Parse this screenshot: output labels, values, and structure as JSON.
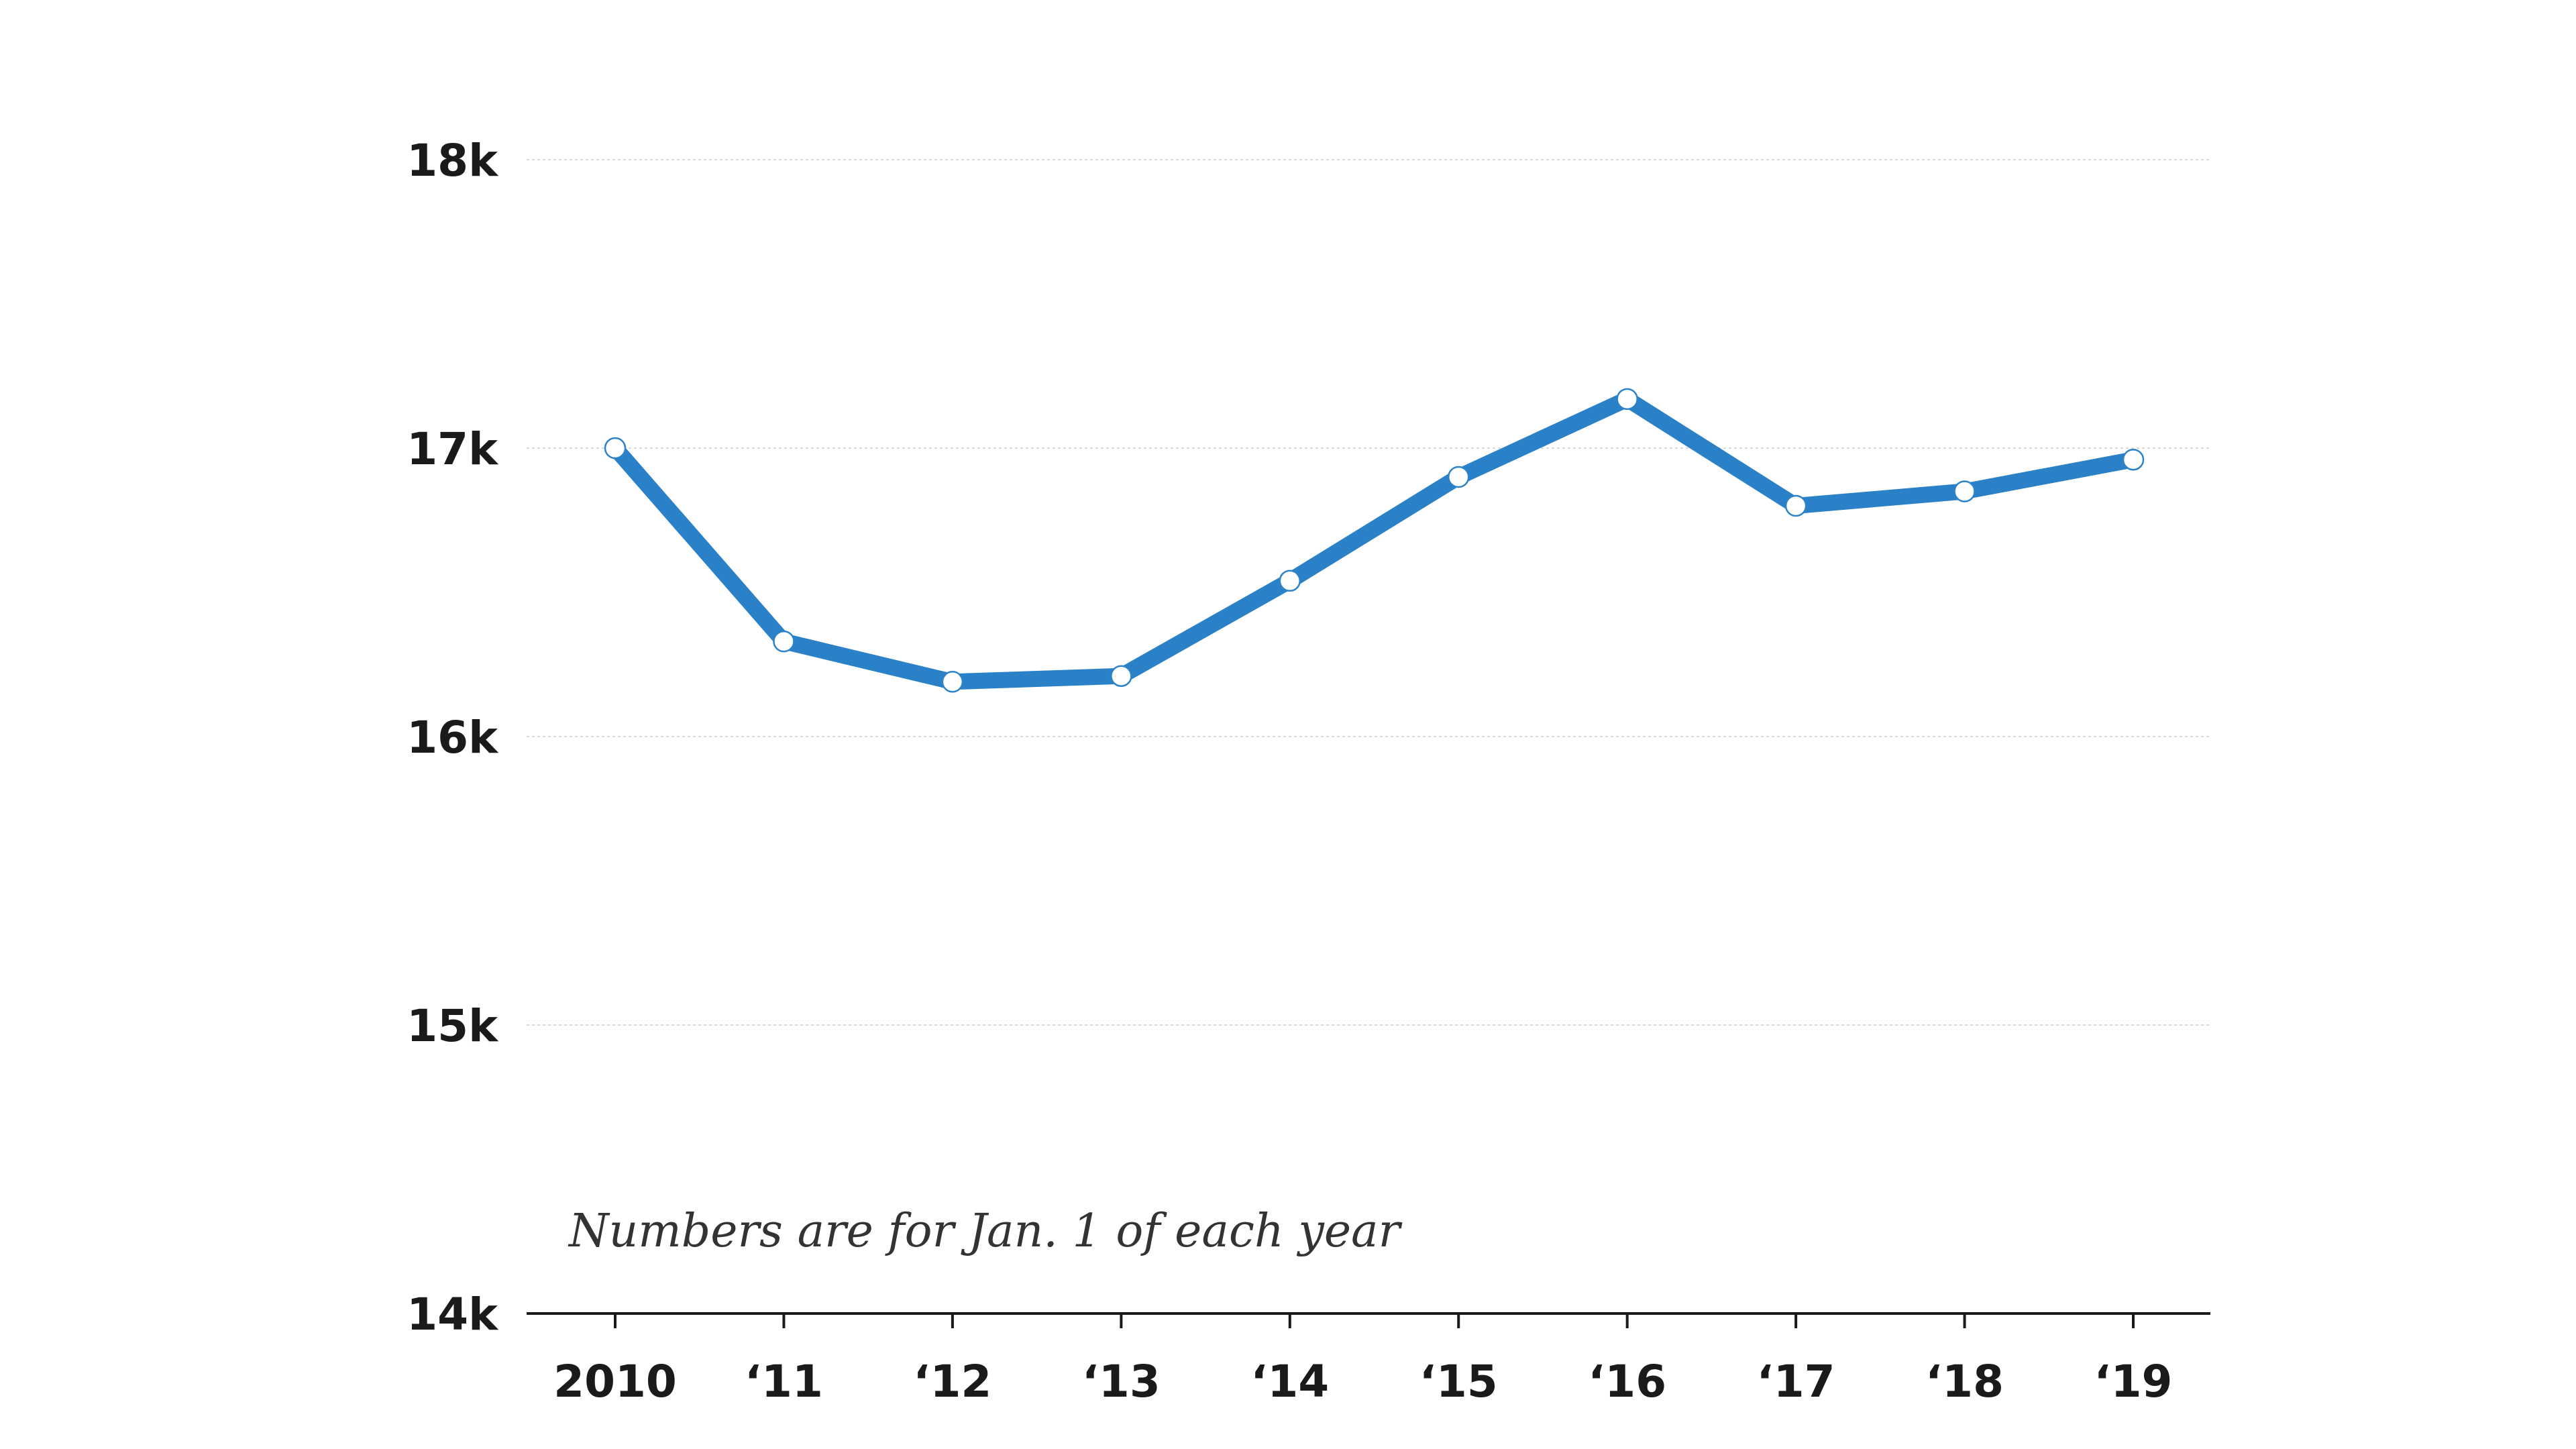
{
  "chart_data": {
    "type": "line",
    "note": "Numbers are for Jan. 1 of each year",
    "categories": [
      "2010",
      "‘11",
      "‘12",
      "‘13",
      "‘14",
      "‘15",
      "‘16",
      "‘17",
      "‘18",
      "‘19"
    ],
    "series": [
      {
        "values": [
          17000,
          16330,
          16190,
          16210,
          16540,
          16900,
          17170,
          16800,
          16850,
          16960
        ],
        "color": "#2a81c8"
      }
    ],
    "ylim": [
      14000,
      18000
    ],
    "yticks": [
      {
        "value": 18000,
        "label": "18k"
      },
      {
        "value": 17000,
        "label": "17k"
      },
      {
        "value": 16000,
        "label": "16k"
      },
      {
        "value": 15000,
        "label": "15k"
      },
      {
        "value": 14000,
        "label": "14k"
      }
    ],
    "grid": true,
    "legend": "none"
  }
}
